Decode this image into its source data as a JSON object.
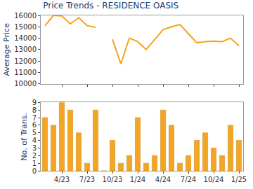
{
  "chart_data": [
    {
      "type": "line",
      "title": "Price Trends - RESIDENCE OASIS",
      "y_label": "Average Price",
      "categories": [
        null,
        null,
        "4/23",
        null,
        null,
        "7/23",
        null,
        null,
        "10/23",
        null,
        null,
        "1/24",
        null,
        null,
        "4/24",
        null,
        null,
        "7/24",
        null,
        null,
        "10/24",
        null,
        null,
        "1/25"
      ],
      "values": [
        15100,
        16000,
        15950,
        15250,
        15800,
        15100,
        14950,
        null,
        13900,
        11750,
        14000,
        13700,
        13000,
        13900,
        14750,
        15000,
        15200,
        14400,
        13600,
        13700,
        13750,
        13700,
        14000,
        13350
      ],
      "color": "#f5a31a",
      "ylim": [
        10000,
        16000
      ],
      "yticks": [
        10000,
        11000,
        12000,
        13000,
        14000,
        15000,
        16000
      ],
      "grid": false,
      "tick_labels": "y"
    },
    {
      "type": "bar",
      "y_label": "No. of Trans.",
      "categories": [
        null,
        null,
        "4/23",
        null,
        null,
        "7/23",
        null,
        null,
        "10/23",
        null,
        null,
        "1/24",
        null,
        null,
        "4/24",
        null,
        null,
        "7/24",
        null,
        null,
        "10/24",
        null,
        null,
        "1/25"
      ],
      "values": [
        7,
        6,
        9,
        8,
        5,
        1,
        8,
        0,
        4,
        1,
        2,
        7,
        1,
        2,
        8,
        6,
        1,
        2,
        4,
        5,
        3,
        2,
        6,
        4
      ],
      "color": "#f2a623",
      "ylim": [
        0,
        9
      ],
      "yticks": [
        0,
        1,
        2,
        3,
        4,
        5,
        6,
        7,
        8,
        9
      ],
      "grid": false
    }
  ]
}
